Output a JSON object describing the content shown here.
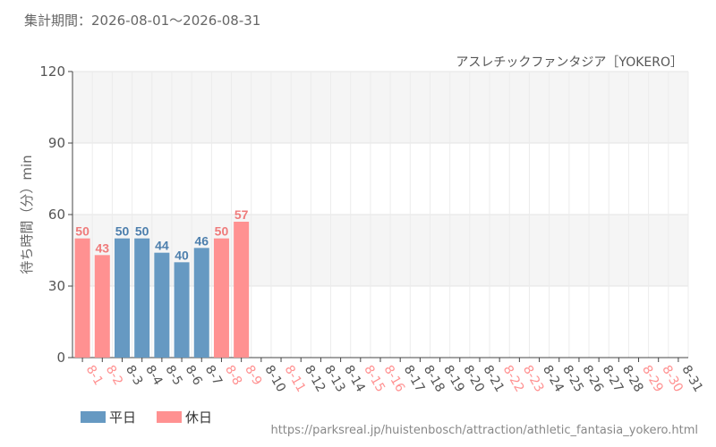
{
  "header": {
    "period_label": "集計期間：2026-08-01～2026-08-31",
    "attraction": "アスレチックファンタジア［YOKERO］"
  },
  "footer": {
    "url": "https://parksreal.jp/huistenbosch/attraction/athletic_fantasia_yokero.html"
  },
  "colors": {
    "weekday": "#6699c2",
    "holiday": "#ff9191",
    "weekday_label": "#4d7fad",
    "holiday_label": "#ef7b7b"
  },
  "chart_data": {
    "type": "bar",
    "title": "アスレチックファンタジア［YOKERO］",
    "ylabel": "待ち時間（分）min",
    "xlabel": "",
    "ylim": [
      0,
      120
    ],
    "yticks": [
      0,
      30,
      60,
      90,
      120
    ],
    "grid": true,
    "legend_position": "bottom-left",
    "legend": [
      {
        "key": "weekday",
        "label": "平日"
      },
      {
        "key": "holiday",
        "label": "休日"
      }
    ],
    "categories": [
      "8-1",
      "8-2",
      "8-3",
      "8-4",
      "8-5",
      "8-6",
      "8-7",
      "8-8",
      "8-9",
      "8-10",
      "8-11",
      "8-12",
      "8-13",
      "8-14",
      "8-15",
      "8-16",
      "8-17",
      "8-18",
      "8-19",
      "8-20",
      "8-21",
      "8-22",
      "8-23",
      "8-24",
      "8-25",
      "8-26",
      "8-27",
      "8-28",
      "8-29",
      "8-30",
      "8-31"
    ],
    "day_types": [
      "holiday",
      "holiday",
      "weekday",
      "weekday",
      "weekday",
      "weekday",
      "weekday",
      "holiday",
      "holiday",
      "weekday",
      "holiday",
      "weekday",
      "weekday",
      "weekday",
      "holiday",
      "holiday",
      "weekday",
      "weekday",
      "weekday",
      "weekday",
      "weekday",
      "holiday",
      "holiday",
      "weekday",
      "weekday",
      "weekday",
      "weekday",
      "weekday",
      "holiday",
      "holiday",
      "weekday"
    ],
    "values": [
      50,
      43,
      50,
      50,
      44,
      40,
      46,
      50,
      57,
      null,
      null,
      null,
      null,
      null,
      null,
      null,
      null,
      null,
      null,
      null,
      null,
      null,
      null,
      null,
      null,
      null,
      null,
      null,
      null,
      null,
      null
    ]
  }
}
